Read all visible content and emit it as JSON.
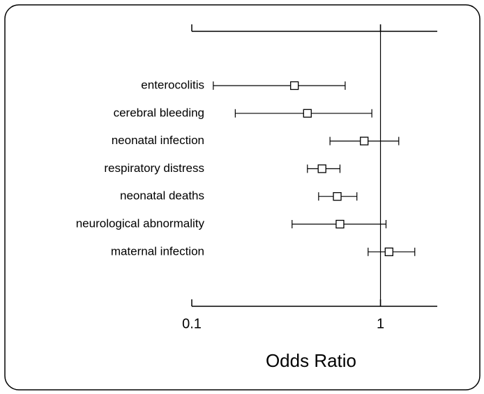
{
  "chart_data": {
    "type": "forest",
    "xlabel": "Odds Ratio",
    "categories": [
      "enterocolitis",
      "cerebral bleeding",
      "neonatal infection",
      "respiratory distress",
      "neonatal deaths",
      "neurological abnormality",
      "maternal infection"
    ],
    "values": [
      0.35,
      0.41,
      0.82,
      0.49,
      0.59,
      0.61,
      1.11
    ],
    "lower": [
      0.13,
      0.17,
      0.54,
      0.41,
      0.47,
      0.34,
      0.86
    ],
    "upper": [
      0.65,
      0.9,
      1.25,
      0.61,
      0.75,
      1.07,
      1.52
    ],
    "xlim": [
      0.1,
      2
    ],
    "xticks": [
      0.1,
      1
    ],
    "xscale": "log",
    "reference_line": 1,
    "color": "#000000"
  }
}
